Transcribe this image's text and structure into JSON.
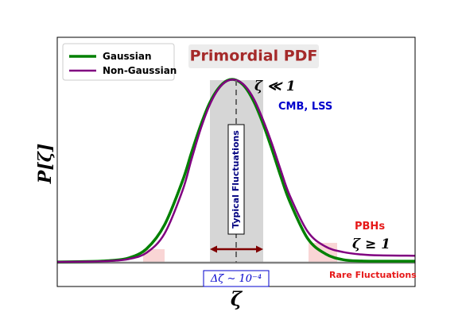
{
  "chart_data": {
    "type": "line",
    "title": "Primordial PDF",
    "xlabel": "ζ",
    "ylabel": "P[ζ]",
    "xlim": [
      -5,
      5
    ],
    "ylim": [
      0,
      1.1
    ],
    "grid": false,
    "legend_position": "top-left",
    "series": [
      {
        "name": "Gaussian",
        "color": "#008000",
        "x": [
          -5,
          -4,
          -3.5,
          -3,
          -2.5,
          -2,
          -1.5,
          -1.25,
          -1,
          -0.75,
          -0.5,
          -0.25,
          0,
          0.25,
          0.5,
          0.75,
          1,
          1.25,
          1.5,
          2,
          2.5,
          3,
          3.5,
          4,
          5
        ],
        "y": [
          0.004,
          0.007,
          0.012,
          0.026,
          0.077,
          0.208,
          0.448,
          0.602,
          0.748,
          0.871,
          0.954,
          0.998,
          1.0,
          0.962,
          0.88,
          0.762,
          0.621,
          0.471,
          0.334,
          0.132,
          0.048,
          0.016,
          0.009,
          0.008,
          0.008
        ]
      },
      {
        "name": "Non-Gaussian",
        "color": "#800080",
        "x": [
          -5,
          -4,
          -3.5,
          -3,
          -2.5,
          -2,
          -1.5,
          -1.25,
          -1,
          -0.75,
          -0.5,
          -0.25,
          0,
          0.25,
          0.5,
          0.75,
          1,
          1.25,
          1.5,
          2,
          2.5,
          3,
          3.5,
          4,
          5
        ],
        "y": [
          0.004,
          0.006,
          0.01,
          0.02,
          0.055,
          0.16,
          0.395,
          0.565,
          0.728,
          0.86,
          0.95,
          0.996,
          1.0,
          0.968,
          0.895,
          0.783,
          0.652,
          0.505,
          0.367,
          0.17,
          0.088,
          0.058,
          0.045,
          0.04,
          0.038
        ]
      }
    ],
    "annotations": {
      "typical_label": "Typical Fluctuations",
      "width_label": "Δζ ∼ 10⁻⁴",
      "peak_label": "ζ ≪ 1",
      "peak_sublabel": "CMB, LSS",
      "tail_label": "PBHs",
      "tail_sublabel": "ζ ≥ 1",
      "rare_label": "Rare Fluctuations"
    },
    "colors": {
      "title_text": "#a52a2a",
      "title_box": "#ececec",
      "blue_text": "#0000cc",
      "red_text": "#e61919",
      "shade_gray": "#c0c0c0",
      "shade_pink": "#f8caca",
      "arrow": "#800000",
      "axis_line": "#808080"
    }
  }
}
